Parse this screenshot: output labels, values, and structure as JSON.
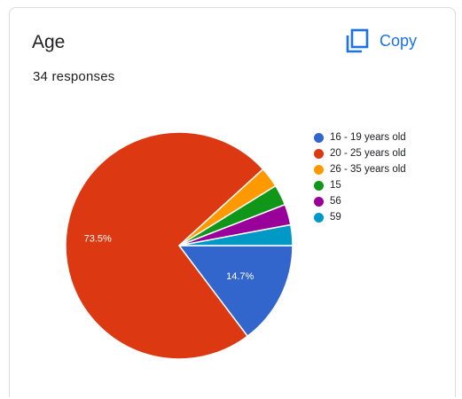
{
  "card": {
    "title": "Age",
    "subtitle": "34 responses",
    "copy_label": "Copy"
  },
  "colors": {
    "accent": "#1a73e8"
  },
  "icons": {
    "copy": "copy-icon"
  },
  "chart_data": {
    "type": "pie",
    "title": "Age",
    "total_responses": 34,
    "labels": [
      "16 - 19 years old",
      "20 - 25 years old",
      "26 - 35 years old",
      "15",
      "56",
      "59"
    ],
    "values": [
      5,
      25,
      1,
      1,
      1,
      1
    ],
    "percent_labels": [
      "14.7%",
      "73.5%",
      "",
      "",
      "",
      ""
    ],
    "colors": [
      "#3366cc",
      "#dc3912",
      "#ff9900",
      "#109618",
      "#990099",
      "#0099c6"
    ],
    "legend_position": "right"
  }
}
